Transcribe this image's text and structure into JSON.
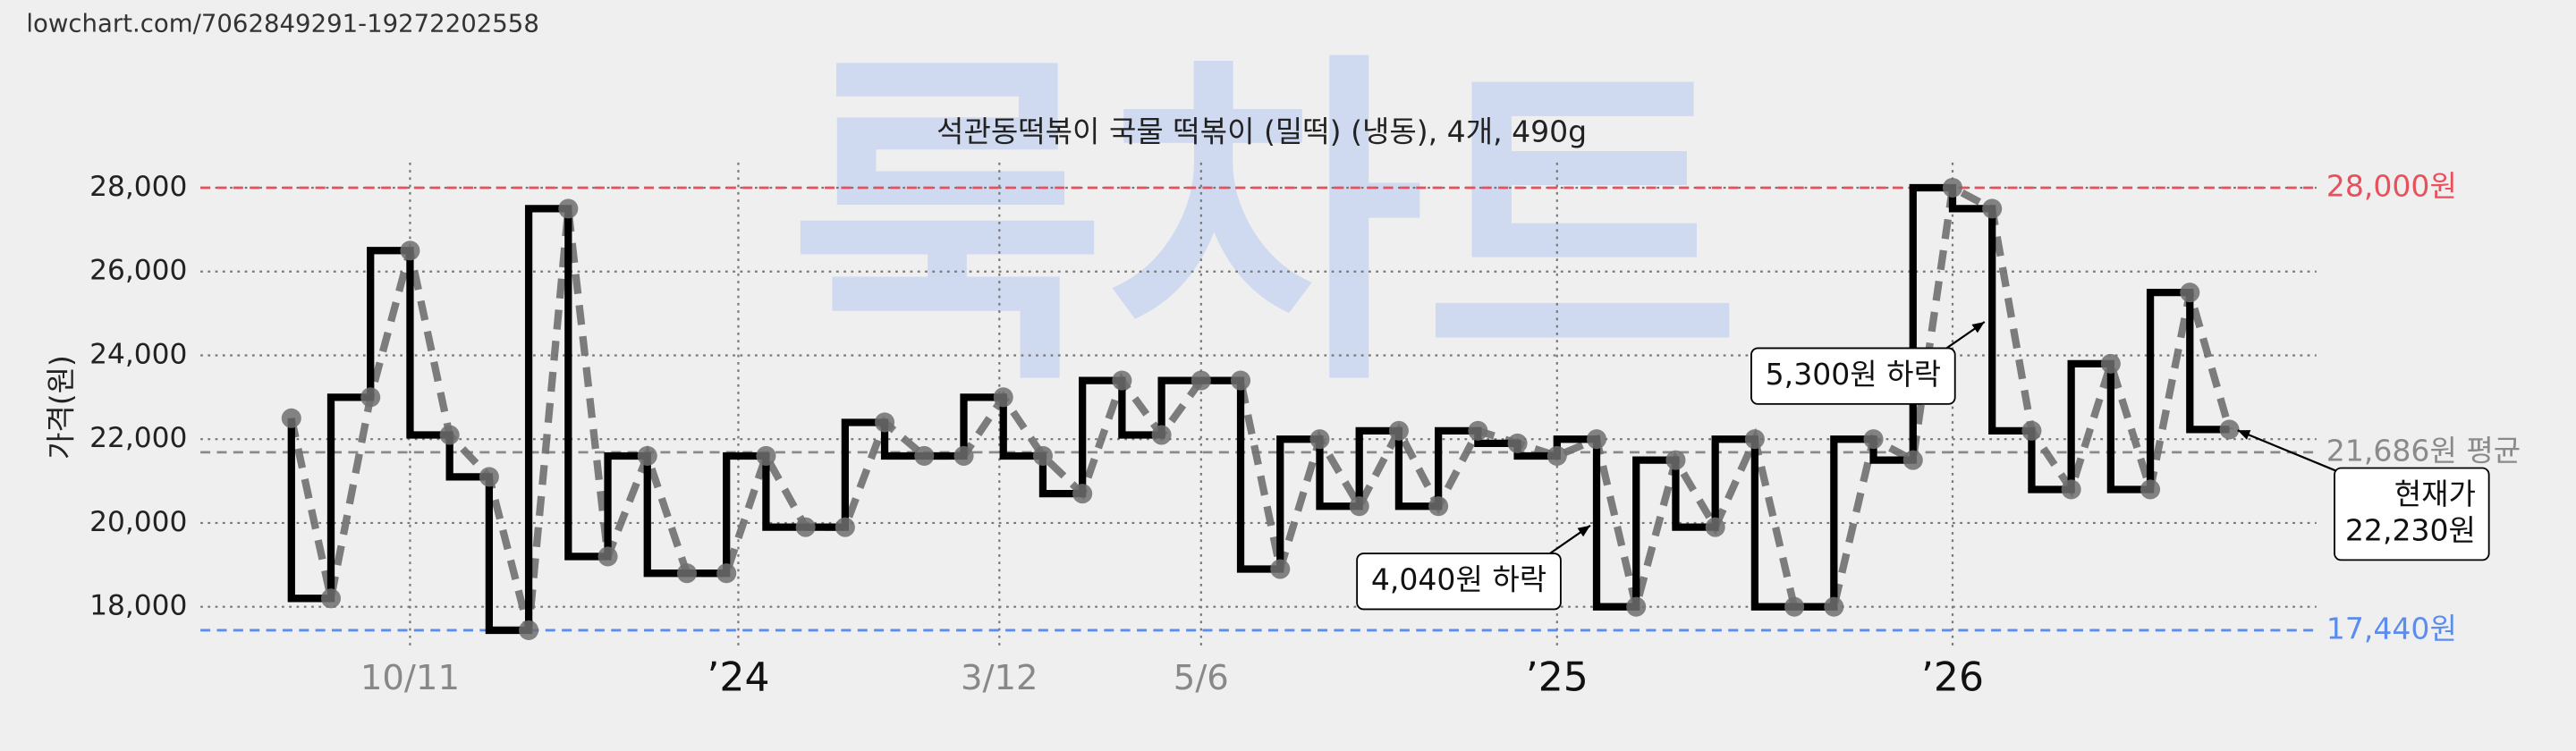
{
  "source_url": "lowchart.com/7062849291-19272202558",
  "chart_data": {
    "type": "step",
    "title": "석관동떡볶이 국물 떡볶이 (밀떡) (냉동), 4개, 490g",
    "watermark": "룩차트",
    "y_label": "가격(원)",
    "x": [
      0,
      1,
      2,
      3,
      4,
      5,
      6,
      7,
      8,
      9,
      10,
      11,
      12,
      13,
      14,
      15,
      16,
      17,
      18,
      19,
      20,
      21,
      22,
      23,
      24,
      25,
      26,
      27,
      28,
      29,
      30,
      31,
      32,
      33,
      34,
      35,
      36,
      37,
      38,
      39,
      40,
      41,
      42,
      43,
      44,
      45,
      46,
      47,
      48,
      49
    ],
    "xlim": [
      -2.3,
      51.2
    ],
    "xticks": [
      {
        "value": 3,
        "label": "10/11"
      },
      {
        "value": 11.3,
        "label": "’24"
      },
      {
        "value": 17.9,
        "label": "3/12"
      },
      {
        "value": 23,
        "label": "5/6"
      },
      {
        "value": 32,
        "label": "’25"
      },
      {
        "value": 42,
        "label": "’26"
      }
    ],
    "ylim": [
      17000,
      28600
    ],
    "yticks": [
      {
        "value": 18000,
        "label": "18,000"
      },
      {
        "value": 20000,
        "label": "20,000"
      },
      {
        "value": 22000,
        "label": "22,000"
      },
      {
        "value": 24000,
        "label": "24,000"
      },
      {
        "value": 26000,
        "label": "26,000"
      },
      {
        "value": 28000,
        "label": "28,000"
      }
    ],
    "grid": true,
    "series": [
      {
        "color": "#000000",
        "marker_color": "#6f6f6f",
        "values": [
          22500,
          18200,
          23000,
          26500,
          22100,
          21100,
          17440,
          27500,
          19200,
          21600,
          18800,
          18800,
          21600,
          19900,
          19900,
          22400,
          21600,
          21600,
          23000,
          21600,
          20700,
          23400,
          22100,
          23400,
          23400,
          18900,
          22000,
          20400,
          22200,
          20400,
          22200,
          21900,
          21600,
          22000,
          18000,
          21500,
          19900,
          22000,
          18000,
          18000,
          22000,
          21500,
          28000,
          27500,
          22200,
          20800,
          23800,
          20800,
          25500,
          22230
        ]
      }
    ],
    "reference_lines": [
      {
        "value": 28000,
        "label": "28,000원",
        "color": "#e8505b"
      },
      {
        "value": 21686,
        "label": "21,686원 평균",
        "color": "#8a8a8a"
      },
      {
        "value": 17440,
        "label": "17,440원",
        "color": "#5b8def"
      }
    ],
    "annotations": [
      {
        "lines": [
          "5,300원 하락"
        ]
      },
      {
        "lines": [
          "4,040원 하락"
        ]
      },
      {
        "lines": [
          "현재가",
          "22,230원"
        ]
      }
    ]
  }
}
